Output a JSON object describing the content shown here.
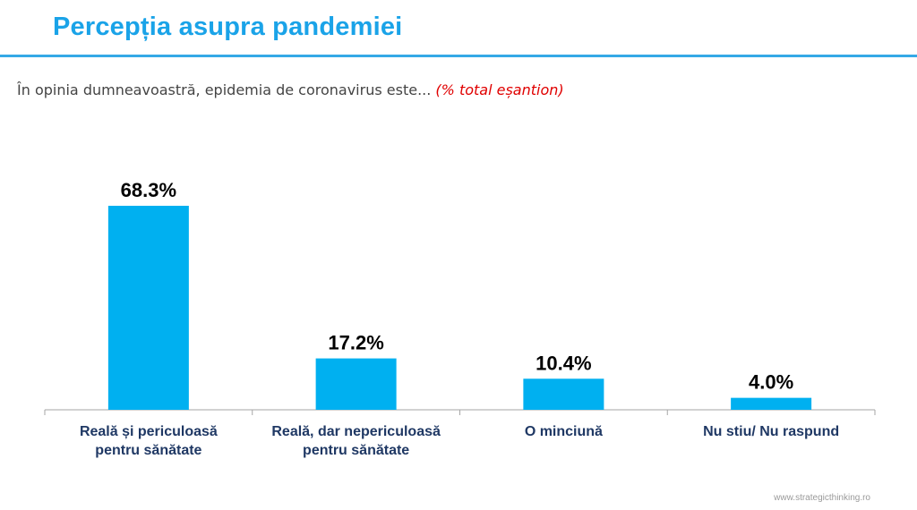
{
  "header": {
    "title": "Percepția asupra pandemiei"
  },
  "question": {
    "text": "În opinia dumneavoastră, epidemia de coronavirus este...",
    "note": "(% total eșantion)"
  },
  "footer": {
    "website": "www.strategicthinking.ro"
  },
  "colors": {
    "bar": "#00b0f0",
    "title": "#1aa3e8",
    "category_label": "#1f3864"
  },
  "chart_data": {
    "type": "bar",
    "categories": [
      [
        "Reală și periculoasă",
        "pentru sănătate"
      ],
      [
        "Reală, dar nepericuloasă",
        "pentru sănătate"
      ],
      [
        "O minciună"
      ],
      [
        "Nu stiu/ Nu raspund"
      ]
    ],
    "values": [
      68.3,
      17.2,
      10.4,
      4.0
    ],
    "value_labels": [
      "68.3%",
      "17.2%",
      "10.4%",
      "4.0%"
    ],
    "ylim": [
      0,
      75
    ],
    "grid": false,
    "legend": "none"
  }
}
